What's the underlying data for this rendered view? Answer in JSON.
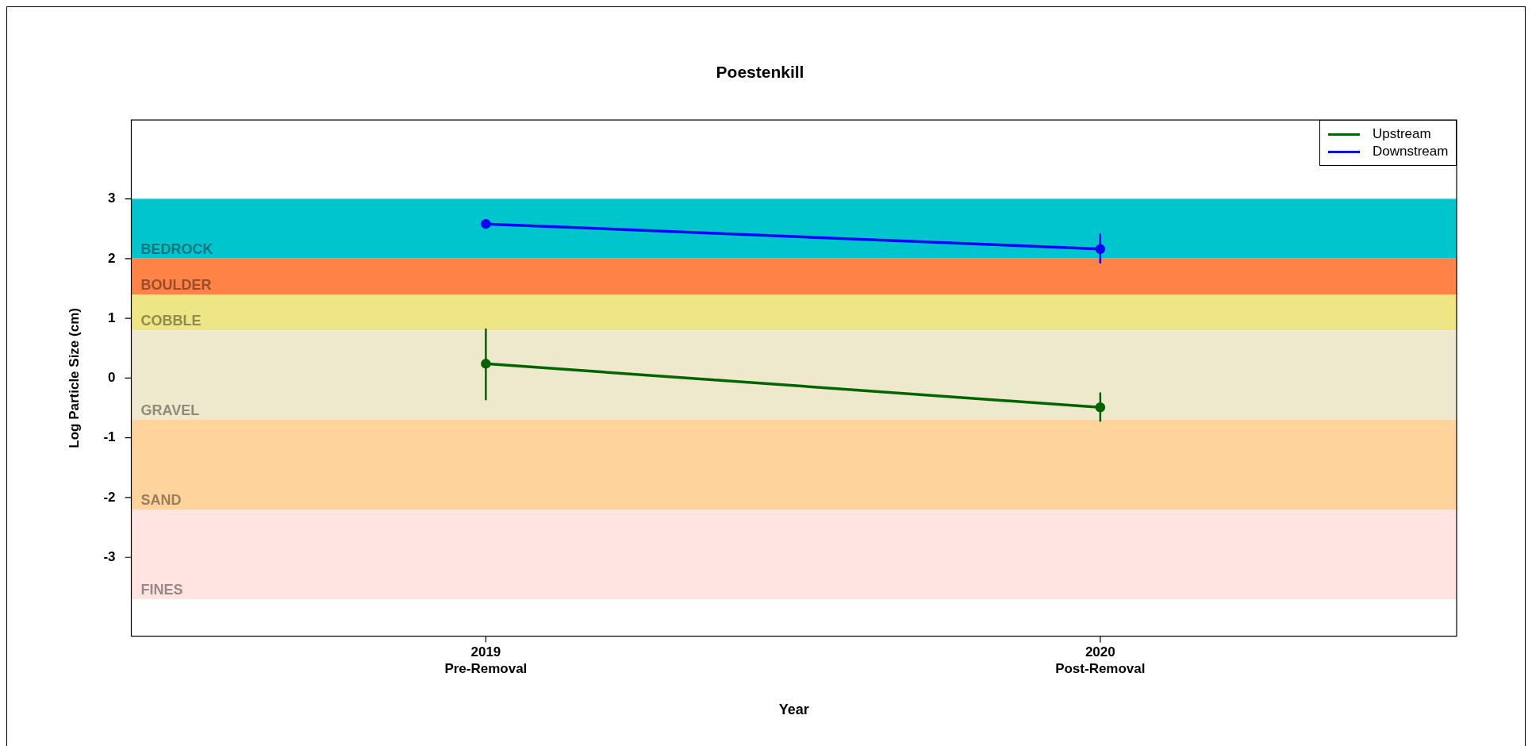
{
  "chart_data": {
    "type": "line",
    "title": "Poestenkill",
    "xlabel": "Year",
    "ylabel": "Log Particle Size (cm)",
    "categories": [
      "2019\nPre-Removal",
      "2020\nPost-Removal"
    ],
    "series": [
      {
        "name": "Upstream",
        "color": "#006400",
        "values": [
          0.24,
          -0.49
        ],
        "errors": [
          [
            -0.37,
            0.83
          ],
          [
            -0.73,
            -0.24
          ]
        ]
      },
      {
        "name": "Downstream",
        "color": "#0000ff",
        "values": [
          2.58,
          2.16
        ],
        "errors": [
          [
            2.52,
            2.66
          ],
          [
            1.92,
            2.42
          ]
        ]
      }
    ],
    "bands": [
      {
        "axis": "y",
        "from": 2,
        "to": 3,
        "label": "BEDROCK",
        "color": "#00c5cd"
      },
      {
        "axis": "y",
        "from": 1.4,
        "to": 2,
        "label": "BOULDER",
        "color": "#ff8247"
      },
      {
        "axis": "y",
        "from": 0.8,
        "to": 1.4,
        "label": "COBBLE",
        "color": "#eee685"
      },
      {
        "axis": "y",
        "from": -0.7,
        "to": 0.8,
        "label": "GRAVEL",
        "color": "#eee8cd"
      },
      {
        "axis": "y",
        "from": -2.2,
        "to": -0.7,
        "label": "SAND",
        "color": "#ffd39b"
      },
      {
        "axis": "y",
        "from": -3.7,
        "to": -2.2,
        "label": "FINES",
        "color": "#ffe4e1"
      }
    ],
    "ylim": [
      -4.32,
      4.32
    ],
    "yticks": [
      -3,
      -2,
      -1,
      0,
      1,
      2,
      3
    ],
    "grid": false,
    "legend": "top right",
    "marker": "circle",
    "line_style": "solid"
  }
}
